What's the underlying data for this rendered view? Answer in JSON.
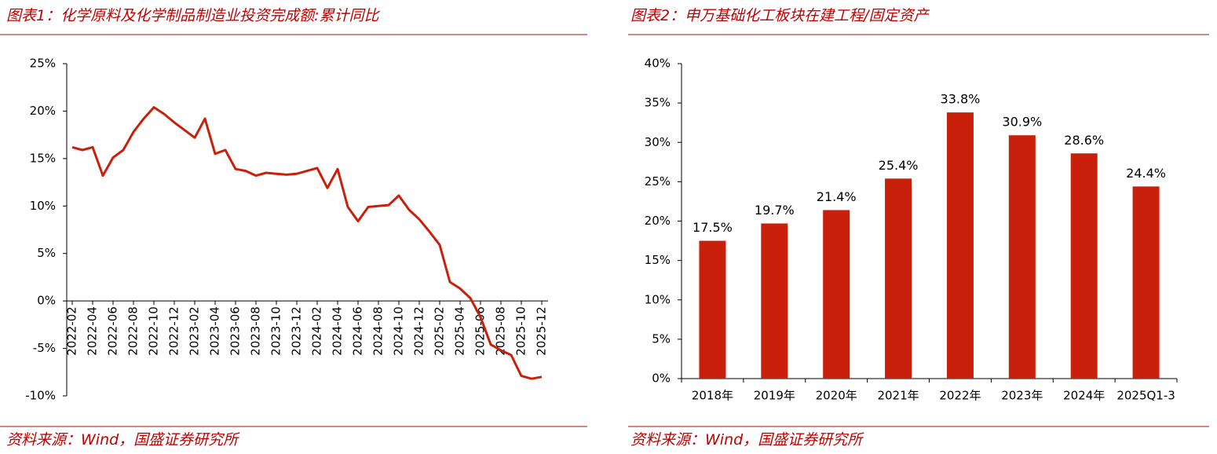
{
  "chart_data": [
    {
      "type": "line",
      "title": "图表1：化学原料及化学制品制造业投资完成额:累计同比",
      "source": "资料来源：Wind，国盛证券研究所",
      "categories": [
        "2022-02",
        null,
        "2022-04",
        null,
        "2022-06",
        null,
        "2022-08",
        null,
        "2022-10",
        null,
        "2022-12",
        null,
        "2023-02",
        null,
        "2023-04",
        null,
        "2023-06",
        null,
        "2023-08",
        null,
        "2023-10",
        null,
        "2023-12",
        null,
        "2024-02",
        null,
        "2024-04",
        null,
        "2024-06",
        null,
        "2024-08",
        null,
        "2024-10",
        null,
        "2024-12",
        null,
        "2025-02",
        null,
        "2025-04",
        null,
        "2025-06",
        null,
        "2025-08",
        null,
        "2025-10",
        null,
        "2025-12"
      ],
      "series": [
        {
          "color": "#c8200a",
          "values": [
            16.2,
            15.9,
            16.2,
            13.2,
            15.1,
            15.9,
            17.8,
            19.2,
            20.4,
            19.7,
            18.8,
            18.0,
            17.2,
            19.2,
            15.5,
            15.9,
            13.9,
            13.7,
            13.2,
            13.5,
            13.4,
            13.3,
            13.4,
            13.7,
            14.0,
            11.9,
            13.9,
            9.9,
            8.4,
            9.9,
            10.0,
            10.1,
            11.1,
            9.6,
            8.6,
            7.3,
            5.9,
            2.0,
            1.3,
            0.3,
            -1.7,
            -4.6,
            -5.2,
            -5.7,
            -7.9,
            -8.2,
            -8.0
          ]
        }
      ],
      "ylim": [
        -10,
        25
      ],
      "yticks": [
        {
          "value": -10,
          "label": "-10%"
        },
        {
          "value": -5,
          "label": "-5%"
        },
        {
          "value": 0,
          "label": "0%"
        },
        {
          "value": 5,
          "label": "5%"
        },
        {
          "value": 10,
          "label": "10%"
        },
        {
          "value": 15,
          "label": "15%"
        },
        {
          "value": 20,
          "label": "20%"
        },
        {
          "value": 25,
          "label": "25%"
        }
      ]
    },
    {
      "type": "bar",
      "title": "图表2：申万基础化工板块在建工程/固定资产",
      "source": "资料来源：Wind，国盛证券研究所",
      "categories": [
        "2018年",
        "2019年",
        "2020年",
        "2021年",
        "2022年",
        "2023年",
        "2024年",
        "2025Q1-3"
      ],
      "values": [
        17.5,
        19.7,
        21.4,
        25.4,
        33.8,
        30.9,
        28.6,
        24.4
      ],
      "value_labels": [
        "17.5%",
        "19.7%",
        "21.4%",
        "25.4%",
        "33.8%",
        "30.9%",
        "28.6%",
        "24.4%"
      ],
      "color": "#c8200a",
      "ylim": [
        0,
        40
      ],
      "yticks": [
        {
          "value": 0,
          "label": "0%"
        },
        {
          "value": 5,
          "label": "5%"
        },
        {
          "value": 10,
          "label": "10%"
        },
        {
          "value": 15,
          "label": "15%"
        },
        {
          "value": 20,
          "label": "20%"
        },
        {
          "value": 25,
          "label": "25%"
        },
        {
          "value": 30,
          "label": "30%"
        },
        {
          "value": 35,
          "label": "35%"
        },
        {
          "value": 40,
          "label": "40%"
        }
      ]
    }
  ]
}
